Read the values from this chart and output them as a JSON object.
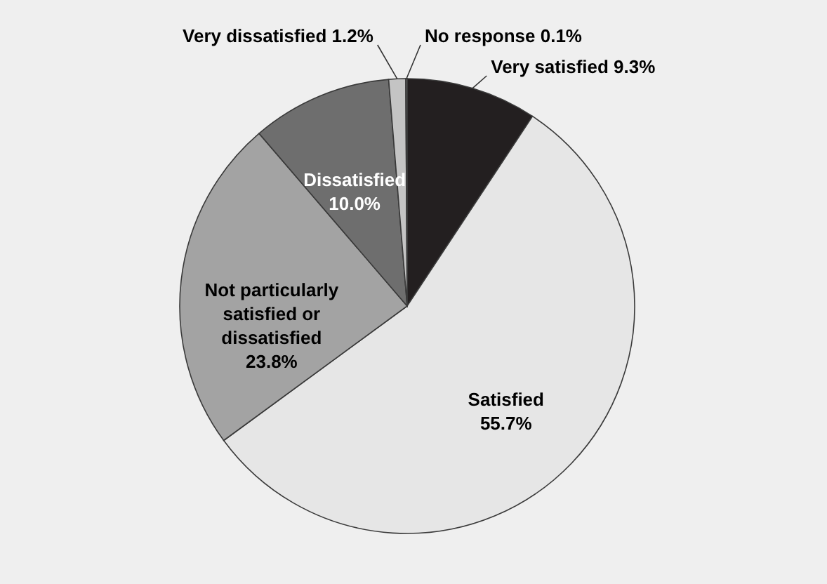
{
  "chart_data": {
    "type": "pie",
    "categories": [
      "Very satisfied",
      "Satisfied",
      "Not particularly satisfied or dissatisfied",
      "Dissatisfied",
      "Very dissatisfied",
      "No response"
    ],
    "values": [
      9.3,
      55.7,
      23.8,
      10.0,
      1.2,
      0.1
    ],
    "value_labels": [
      "9.3%",
      "55.7%",
      "23.8%",
      "10.0%",
      "1.2%",
      "0.1%"
    ],
    "colors": [
      "#231f20",
      "#e6e6e6",
      "#a3a3a3",
      "#6e6e6e",
      "#c4c4c4",
      "#8a8a8a"
    ]
  }
}
